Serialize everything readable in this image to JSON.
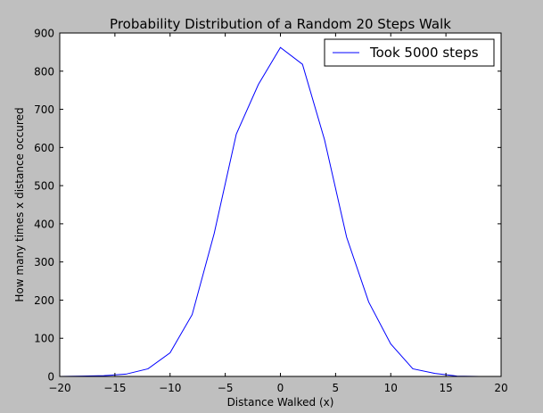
{
  "chart_data": {
    "type": "line",
    "title": "Probability Distribution of a Random 20 Steps Walk",
    "xlabel": "Distance Walked (x)",
    "ylabel": "How many times x distance occured",
    "xlim": [
      -20,
      20
    ],
    "ylim": [
      0,
      900
    ],
    "xticks": [
      -20,
      -15,
      -10,
      -5,
      0,
      5,
      10,
      15,
      20
    ],
    "xtick_labels": [
      "−20",
      "−15",
      "−10",
      "−5",
      "0",
      "5",
      "10",
      "15",
      "20"
    ],
    "yticks": [
      0,
      100,
      200,
      300,
      400,
      500,
      600,
      700,
      800,
      900
    ],
    "ytick_labels": [
      "0",
      "100",
      "200",
      "300",
      "400",
      "500",
      "600",
      "700",
      "800",
      "900"
    ],
    "grid": false,
    "legend_position": "top-right",
    "series": [
      {
        "name": "Took 5000 steps",
        "color": "#0000ff",
        "x": [
          -20,
          -18,
          -16,
          -14,
          -12,
          -10,
          -8,
          -6,
          -4,
          -2,
          0,
          2,
          4,
          6,
          8,
          10,
          12,
          14,
          16,
          18,
          20
        ],
        "y": [
          0,
          1,
          2,
          6,
          20,
          62,
          162,
          375,
          635,
          765,
          862,
          818,
          620,
          365,
          195,
          85,
          20,
          8,
          1,
          0,
          0
        ]
      }
    ]
  }
}
